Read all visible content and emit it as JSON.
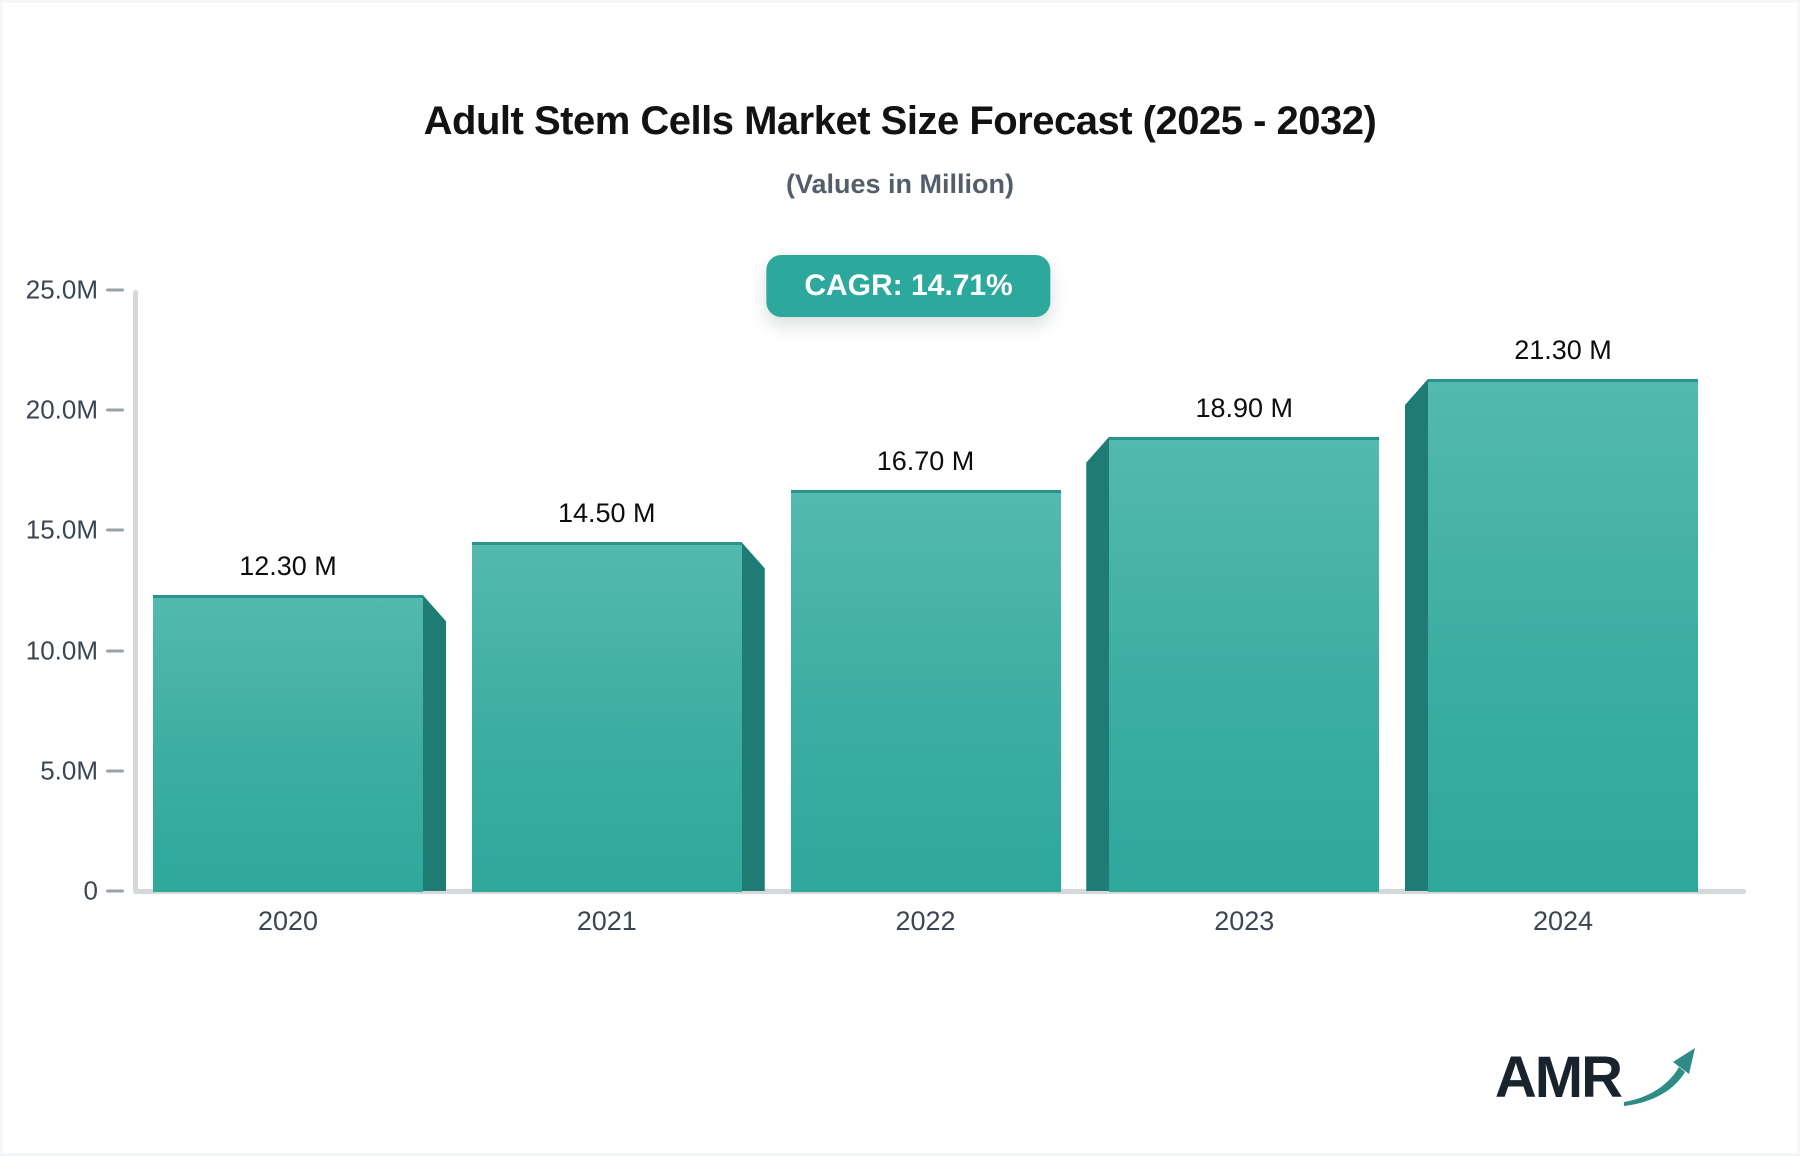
{
  "title": "Adult Stem Cells Market Size Forecast (2025 - 2032)",
  "subtitle": "(Values in Million)",
  "cagr_badge_label": "CAGR: 14.71%",
  "logo": {
    "text": "AMR",
    "arrow_icon": "trend-up-arrow"
  },
  "colors": {
    "bar_face_top": "#54b9ae",
    "bar_face_bottom": "#2fa89c",
    "bar_side_3d": "#1f7c74",
    "badge_background": "#2ca89d",
    "badge_text": "#ffffff",
    "axis_line": "#d5d8da",
    "tick_text": "#3a4653",
    "title_text": "#101214",
    "subtitle_text": "#525e6a",
    "logo_text": "#19232d",
    "logo_arrow": "#2e8c86"
  },
  "chart_data": {
    "type": "bar",
    "title": "Adult Stem Cells Market Size Forecast (2025 - 2032)",
    "subtitle": "(Values in Million)",
    "annotation": "CAGR: 14.71%",
    "categories": [
      "2020",
      "2021",
      "2022",
      "2023",
      "2024"
    ],
    "values": [
      12.3,
      14.5,
      16.7,
      18.9,
      21.3
    ],
    "value_labels": [
      "12.30 M",
      "14.50 M",
      "16.70 M",
      "18.90 M",
      "21.30 M"
    ],
    "unit": "Million",
    "ylim": [
      0,
      25
    ],
    "y_ticks": [
      {
        "value": 0,
        "label": "0"
      },
      {
        "value": 5,
        "label": "5.0M"
      },
      {
        "value": 10,
        "label": "10.0M"
      },
      {
        "value": 15,
        "label": "15.0M"
      },
      {
        "value": 20,
        "label": "20.0M"
      },
      {
        "value": 25,
        "label": "25.0M"
      }
    ],
    "grid": false,
    "legend": false,
    "bar_3d_side": [
      "right",
      "right",
      "none",
      "left",
      "left"
    ]
  }
}
